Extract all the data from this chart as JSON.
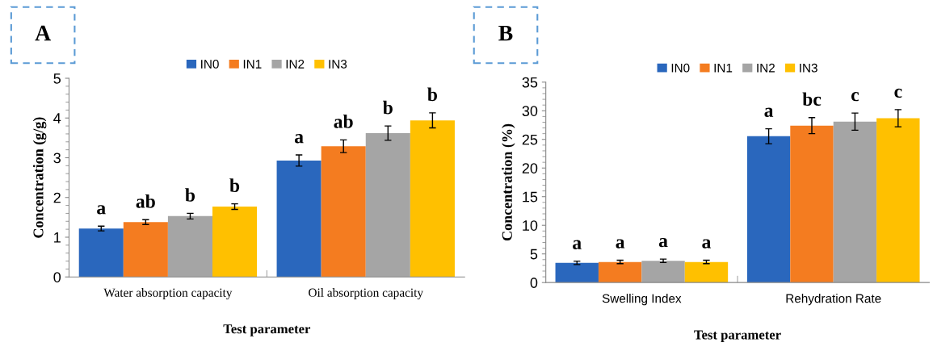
{
  "chart_data": [
    {
      "type": "bar",
      "annotations": [
        "A"
      ],
      "xlabel": "Test parameter",
      "ylabel": "Concentration (g/g)",
      "categories": [
        "Water absorption capacity",
        "Oil absorption capacity"
      ],
      "ylim": [
        0,
        5
      ],
      "yticks": [
        0,
        1,
        2,
        3,
        4,
        5
      ],
      "legend": "top",
      "grid": false,
      "series": [
        {
          "name": "IN0",
          "color": "#2a67bd",
          "values": [
            1.22,
            2.93
          ],
          "errors": [
            0.06,
            0.14
          ],
          "value_labels": [
            "a",
            "a"
          ]
        },
        {
          "name": "IN1",
          "color": "#f47c20",
          "values": [
            1.38,
            3.29
          ],
          "errors": [
            0.06,
            0.16
          ],
          "value_labels": [
            "ab",
            "ab"
          ]
        },
        {
          "name": "IN2",
          "color": "#a5a5a5",
          "values": [
            1.53,
            3.62
          ],
          "errors": [
            0.07,
            0.18
          ],
          "value_labels": [
            "b",
            "b"
          ]
        },
        {
          "name": "IN3",
          "color": "#ffc000",
          "values": [
            1.77,
            3.94
          ],
          "errors": [
            0.07,
            0.19
          ],
          "value_labels": [
            "b",
            "b"
          ]
        }
      ]
    },
    {
      "type": "bar",
      "annotations": [
        "B"
      ],
      "xlabel": "Test parameter",
      "ylabel": "Concentration (%)",
      "categories": [
        "Swelling Index",
        "Rehydration Rate"
      ],
      "ylim": [
        0,
        35
      ],
      "yticks": [
        0,
        5,
        10,
        15,
        20,
        25,
        30,
        35
      ],
      "legend": "top",
      "grid": false,
      "series": [
        {
          "name": "IN0",
          "color": "#2a67bd",
          "values": [
            3.44,
            25.55
          ],
          "errors": [
            0.3,
            1.3
          ],
          "value_labels": [
            "a",
            "a"
          ]
        },
        {
          "name": "IN1",
          "color": "#f47c20",
          "values": [
            3.6,
            27.4
          ],
          "errors": [
            0.3,
            1.4
          ],
          "value_labels": [
            "a",
            "bc"
          ]
        },
        {
          "name": "IN2",
          "color": "#a5a5a5",
          "values": [
            3.8,
            28.1
          ],
          "errors": [
            0.3,
            1.5
          ],
          "value_labels": [
            "a",
            "c"
          ]
        },
        {
          "name": "IN3",
          "color": "#ffc000",
          "values": [
            3.6,
            28.7
          ],
          "errors": [
            0.3,
            1.5
          ],
          "value_labels": [
            "a",
            "c"
          ]
        }
      ]
    }
  ]
}
